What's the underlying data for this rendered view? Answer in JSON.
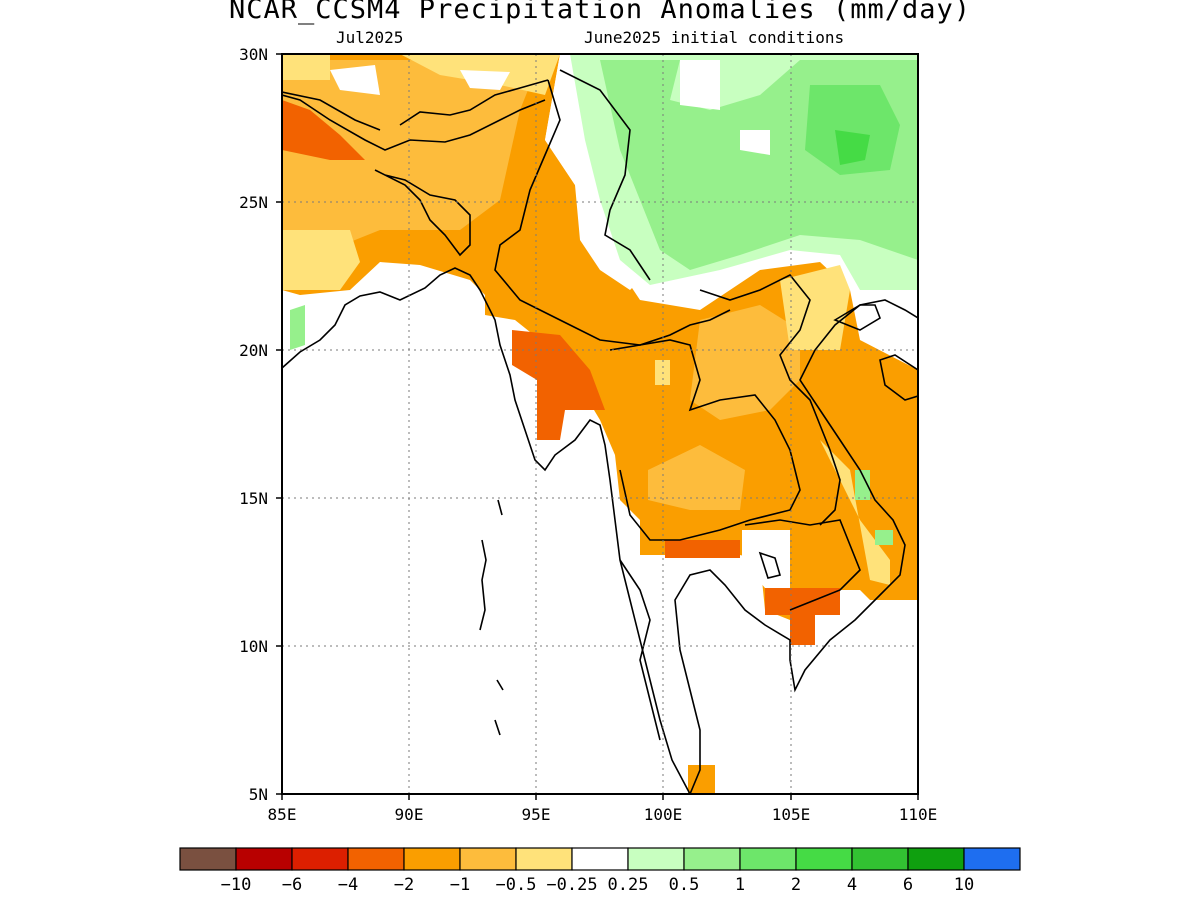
{
  "title": "NCAR_CCSM4 Precipitation Anomalies (mm/day)",
  "subtitle_left": "Jul2025",
  "subtitle_right": "June2025 initial conditions",
  "lat_labels": [
    "30N",
    "25N",
    "20N",
    "15N",
    "10N",
    "5N"
  ],
  "lon_labels": [
    "85E",
    "90E",
    "95E",
    "100E",
    "105E",
    "110E"
  ],
  "colorbar": {
    "colors": [
      "#7a5040",
      "#b80000",
      "#dc1f00",
      "#f26200",
      "#fa9e00",
      "#fdbc3c",
      "#ffe27a",
      "#ffffff",
      "#c8ffc0",
      "#96f08c",
      "#6de66a",
      "#45db45",
      "#32c232",
      "#0fa00f",
      "#1e6ef0"
    ],
    "labels": [
      "-10",
      "-6",
      "-4",
      "-2",
      "-1",
      "-0.5",
      "-0.25",
      "0.25",
      "0.5",
      "1",
      "2",
      "4",
      "6",
      "10"
    ]
  },
  "map_extent": {
    "lon_min": 85,
    "lon_max": 110,
    "lat_min": 5,
    "lat_max": 30
  }
}
